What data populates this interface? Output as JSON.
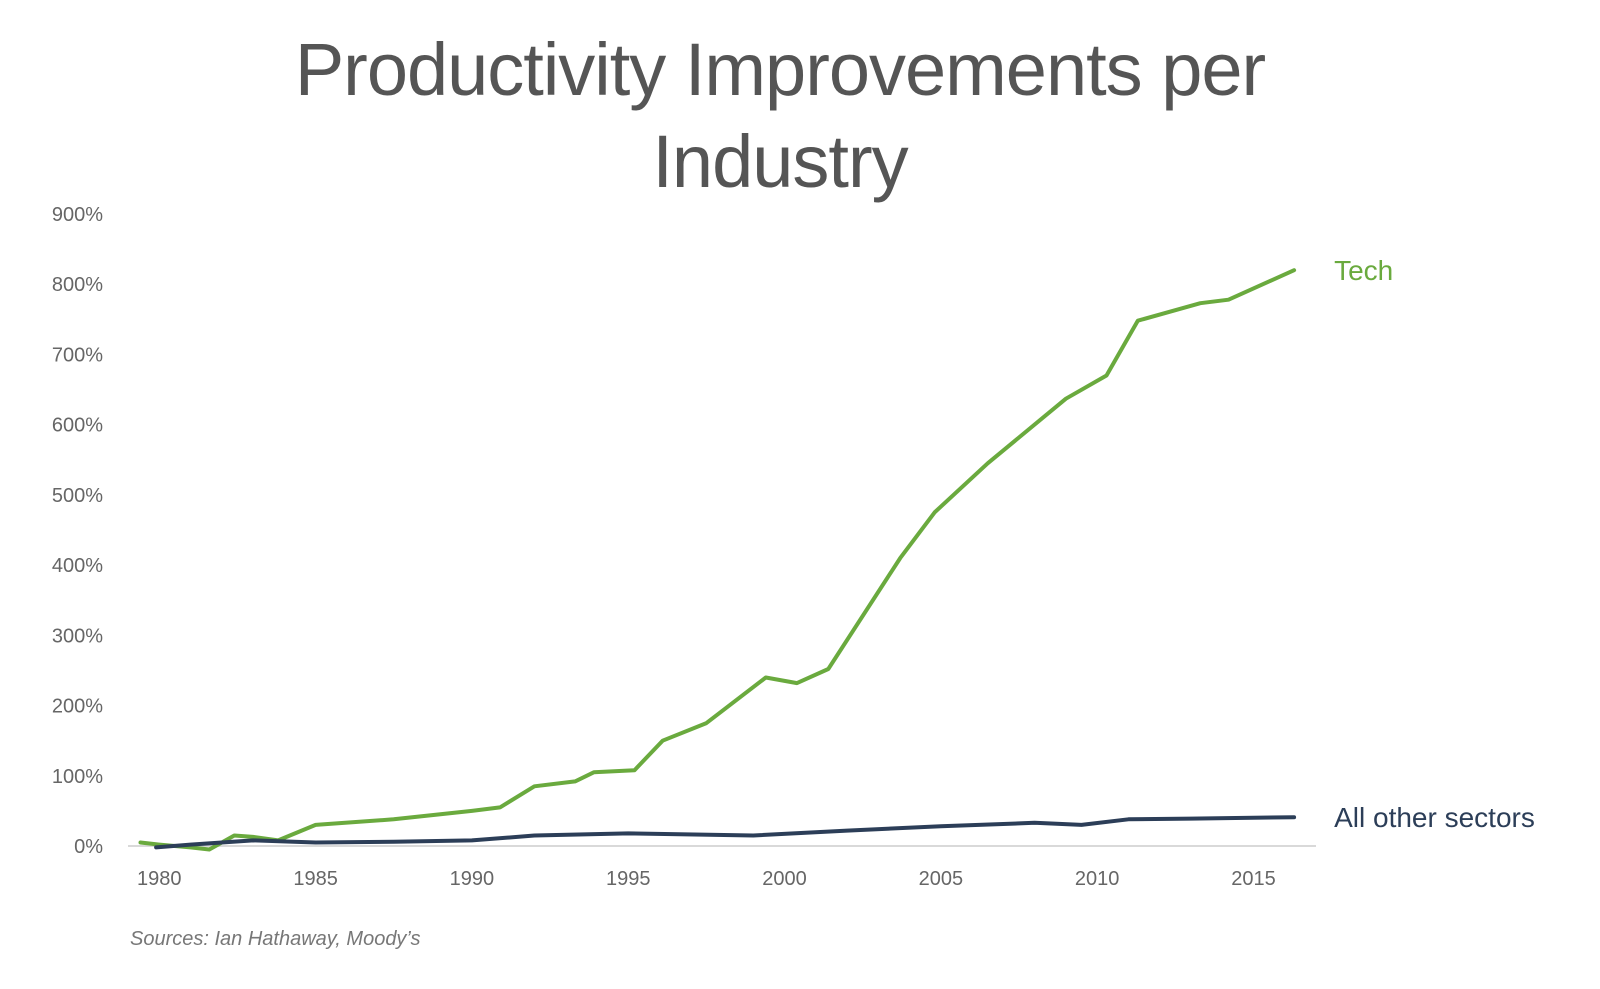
{
  "chart_data": {
    "type": "line",
    "title_line1": "Productivity Improvements per",
    "title_line2": "Industry",
    "source": "Sources: Ian Hathaway, Moody’s",
    "xlabel": "",
    "ylabel": "",
    "xlim": [
      1979,
      2017
    ],
    "ylim": [
      0,
      900
    ],
    "x_ticks": [
      1980,
      1985,
      1990,
      1995,
      2000,
      2005,
      2010,
      2015
    ],
    "y_ticks": [
      "0%",
      "100%",
      "200%",
      "300%",
      "400%",
      "500%",
      "600%",
      "700%",
      "800%",
      "900%"
    ],
    "y_tick_values": [
      0,
      100,
      200,
      300,
      400,
      500,
      600,
      700,
      800,
      900
    ],
    "grid": false,
    "series": [
      {
        "name": "Tech",
        "color": "#6aaa3e",
        "x": [
          1979.4,
          1980.0,
          1981.0,
          1981.6,
          1982.4,
          1983.0,
          1983.8,
          1985.0,
          1987.5,
          1990.0,
          1990.9,
          1992.0,
          1993.3,
          1993.9,
          1995.2,
          1996.1,
          1997.5,
          1999.4,
          2000.4,
          2001.4,
          2003.7,
          2004.8,
          2006.5,
          2009.0,
          2010.3,
          2011.3,
          2013.3,
          2014.2,
          2016.3
        ],
        "y": [
          5,
          2,
          -2,
          -5,
          15,
          13,
          8,
          30,
          38,
          50,
          55,
          85,
          92,
          105,
          108,
          150,
          175,
          240,
          232,
          252,
          410,
          475,
          545,
          637,
          670,
          748,
          773,
          778,
          820
        ]
      },
      {
        "name": "All other sectors",
        "color": "#2c3e58",
        "x": [
          1979.9,
          1981.0,
          1982.0,
          1983.0,
          1985.0,
          1987.5,
          1990.0,
          1992.0,
          1995.0,
          1999.0,
          2002.0,
          2005.0,
          2008.0,
          2009.5,
          2011.0,
          2013.0,
          2016.3
        ],
        "y": [
          -2,
          2,
          5,
          8,
          5,
          6,
          8,
          15,
          18,
          15,
          22,
          28,
          33,
          30,
          38,
          39,
          41
        ]
      }
    ]
  }
}
